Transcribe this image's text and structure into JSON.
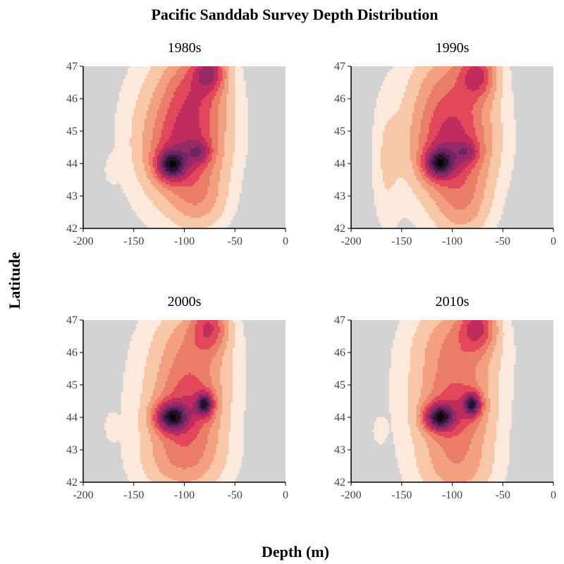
{
  "chart_data": {
    "type": "heatmap",
    "subtype": "filled-contour-density",
    "title": "Pacific Sanddab Survey Depth Distribution",
    "xlabel": "Depth (m)",
    "ylabel": "Latitude",
    "xlim": [
      -200,
      0
    ],
    "ylim": [
      42,
      47
    ],
    "xticks": [
      "-200",
      "-150",
      "-100",
      "-50",
      "0"
    ],
    "yticks": [
      "42",
      "43",
      "44",
      "45",
      "46",
      "47"
    ],
    "background_color": "#d3d3d3",
    "grid": false,
    "legend": "none",
    "color_levels": [
      "#d3d3d3",
      "#fbe9dc",
      "#f7c7a8",
      "#f2a07f",
      "#ea7d68",
      "#e2475a",
      "#c02c5e",
      "#962a66",
      "#6e2563",
      "#471c4e",
      "#25112a",
      "#0b0505"
    ],
    "panels": [
      {
        "title": "1980s",
        "density_components": [
          {
            "depth": -113,
            "lat": 43.95,
            "sd_depth": 10,
            "sd_lat": 0.32,
            "weight": 1.0
          },
          {
            "depth": -85,
            "lat": 44.35,
            "sd_depth": 8,
            "sd_lat": 0.25,
            "weight": 0.45
          },
          {
            "depth": -100,
            "lat": 44.3,
            "sd_depth": 24,
            "sd_lat": 0.9,
            "weight": 0.55
          },
          {
            "depth": -75,
            "lat": 46.85,
            "sd_depth": 11,
            "sd_lat": 0.45,
            "weight": 0.72
          },
          {
            "depth": -90,
            "lat": 46.2,
            "sd_depth": 20,
            "sd_lat": 0.9,
            "weight": 0.42
          },
          {
            "depth": -100,
            "lat": 45.4,
            "sd_depth": 30,
            "sd_lat": 1.3,
            "weight": 0.28
          },
          {
            "depth": -85,
            "lat": 42.8,
            "sd_depth": 18,
            "sd_lat": 0.6,
            "weight": 0.25
          },
          {
            "depth": -172,
            "lat": 43.8,
            "sd_depth": 4,
            "sd_lat": 0.25,
            "weight": 0.1
          },
          {
            "depth": -115,
            "lat": 44.5,
            "sd_depth": 38,
            "sd_lat": 2.2,
            "weight": 0.1
          }
        ]
      },
      {
        "title": "1990s",
        "density_components": [
          {
            "depth": -113,
            "lat": 44.0,
            "sd_depth": 10,
            "sd_lat": 0.32,
            "weight": 1.0
          },
          {
            "depth": -85,
            "lat": 44.35,
            "sd_depth": 8,
            "sd_lat": 0.25,
            "weight": 0.42
          },
          {
            "depth": -100,
            "lat": 44.3,
            "sd_depth": 25,
            "sd_lat": 0.9,
            "weight": 0.55
          },
          {
            "depth": -75,
            "lat": 46.75,
            "sd_depth": 12,
            "sd_lat": 0.5,
            "weight": 0.68
          },
          {
            "depth": -100,
            "lat": 45.8,
            "sd_depth": 26,
            "sd_lat": 1.2,
            "weight": 0.5
          },
          {
            "depth": -90,
            "lat": 42.7,
            "sd_depth": 18,
            "sd_lat": 0.7,
            "weight": 0.3
          },
          {
            "depth": -165,
            "lat": 44.0,
            "sd_depth": 9,
            "sd_lat": 1.4,
            "weight": 0.13
          },
          {
            "depth": -110,
            "lat": 44.5,
            "sd_depth": 40,
            "sd_lat": 2.2,
            "weight": 0.1
          }
        ]
      },
      {
        "title": "2000s",
        "density_components": [
          {
            "depth": -113,
            "lat": 44.0,
            "sd_depth": 11,
            "sd_lat": 0.3,
            "weight": 1.0
          },
          {
            "depth": -80,
            "lat": 44.4,
            "sd_depth": 6,
            "sd_lat": 0.25,
            "weight": 0.95
          },
          {
            "depth": -97,
            "lat": 44.2,
            "sd_depth": 22,
            "sd_lat": 0.8,
            "weight": 0.5
          },
          {
            "depth": -75,
            "lat": 46.8,
            "sd_depth": 12,
            "sd_lat": 0.5,
            "weight": 0.55
          },
          {
            "depth": -92,
            "lat": 45.9,
            "sd_depth": 24,
            "sd_lat": 1.0,
            "weight": 0.35
          },
          {
            "depth": -100,
            "lat": 42.7,
            "sd_depth": 26,
            "sd_lat": 0.7,
            "weight": 0.33
          },
          {
            "depth": -172,
            "lat": 43.7,
            "sd_depth": 4,
            "sd_lat": 0.25,
            "weight": 0.1
          },
          {
            "depth": -110,
            "lat": 44.5,
            "sd_depth": 42,
            "sd_lat": 2.2,
            "weight": 0.1
          }
        ]
      },
      {
        "title": "2010s",
        "density_components": [
          {
            "depth": -113,
            "lat": 44.0,
            "sd_depth": 10,
            "sd_lat": 0.28,
            "weight": 1.0
          },
          {
            "depth": -80,
            "lat": 44.4,
            "sd_depth": 6,
            "sd_lat": 0.25,
            "weight": 0.92
          },
          {
            "depth": -97,
            "lat": 44.2,
            "sd_depth": 22,
            "sd_lat": 0.7,
            "weight": 0.45
          },
          {
            "depth": -75,
            "lat": 46.8,
            "sd_depth": 12,
            "sd_lat": 0.5,
            "weight": 0.58
          },
          {
            "depth": -95,
            "lat": 46.0,
            "sd_depth": 26,
            "sd_lat": 1.0,
            "weight": 0.38
          },
          {
            "depth": -95,
            "lat": 42.6,
            "sd_depth": 24,
            "sd_lat": 0.8,
            "weight": 0.3
          },
          {
            "depth": -172,
            "lat": 43.6,
            "sd_depth": 4,
            "sd_lat": 0.25,
            "weight": 0.1
          },
          {
            "depth": -110,
            "lat": 44.5,
            "sd_depth": 40,
            "sd_lat": 2.2,
            "weight": 0.1
          }
        ]
      }
    ]
  }
}
